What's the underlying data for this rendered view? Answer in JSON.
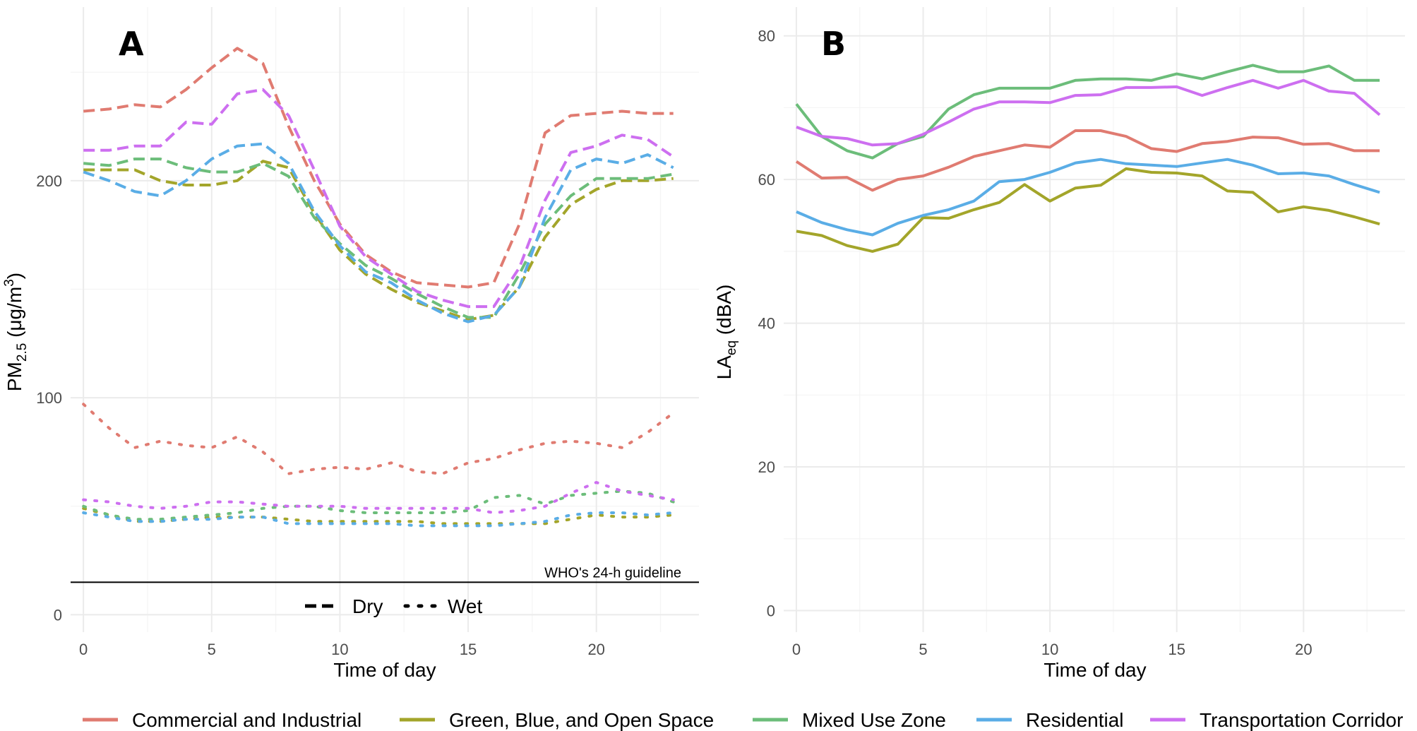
{
  "chart_data": [
    {
      "panel": "A",
      "type": "line",
      "xlabel": "Time of day",
      "ylabel": "PM2.5 (μg/m3)",
      "ylabel_main": "PM",
      "ylabel_sub": "2.5",
      "ylabel_rest": " (μg/m",
      "ylabel_sup": "3",
      "ylabel_close": ")",
      "xlim": [
        -0.5,
        24.0
      ],
      "ylim": [
        -8,
        280
      ],
      "xticks": [
        0,
        5,
        10,
        15,
        20
      ],
      "xtick_labels": [
        "0",
        "5",
        "10",
        "15",
        "20"
      ],
      "yticks": [
        0,
        100,
        200
      ],
      "ytick_labels": [
        "0",
        "100",
        "200"
      ],
      "annotation": {
        "text": "WHO's 24-h guideline",
        "y": 15
      },
      "linetype_legend": [
        {
          "label": "Dry",
          "dash": "dashed"
        },
        {
          "label": "Wet",
          "dash": "dotted"
        }
      ],
      "x": [
        0,
        1,
        2,
        3,
        4,
        5,
        6,
        7,
        8,
        9,
        10,
        11,
        12,
        13,
        14,
        15,
        16,
        17,
        18,
        19,
        20,
        21,
        22,
        23
      ],
      "series": [
        {
          "name": "Commercial and Industrial",
          "condition": "Dry",
          "values": [
            232,
            233,
            235,
            234,
            242,
            252,
            261,
            254,
            225,
            200,
            180,
            166,
            158,
            153,
            152,
            151,
            153,
            180,
            222,
            230,
            231,
            232,
            231,
            231
          ]
        },
        {
          "name": "Green, Blue, and Open Space",
          "condition": "Dry",
          "values": [
            205,
            205,
            205,
            200,
            198,
            198,
            200,
            209,
            206,
            185,
            168,
            157,
            150,
            144,
            140,
            136,
            138,
            151,
            174,
            189,
            196,
            200,
            200,
            201
          ]
        },
        {
          "name": "Mixed Use Zone",
          "condition": "Dry",
          "values": [
            208,
            207,
            210,
            210,
            206,
            204,
            204,
            208,
            202,
            183,
            171,
            161,
            155,
            148,
            142,
            137,
            137,
            157,
            180,
            193,
            201,
            201,
            201,
            203
          ]
        },
        {
          "name": "Residential",
          "condition": "Dry",
          "values": [
            204,
            200,
            195,
            193,
            200,
            210,
            216,
            217,
            208,
            186,
            170,
            158,
            153,
            145,
            139,
            135,
            138,
            151,
            183,
            205,
            210,
            208,
            212,
            206
          ]
        },
        {
          "name": "Transportation Corridor",
          "condition": "Dry",
          "values": [
            214,
            214,
            216,
            216,
            227,
            226,
            240,
            242,
            230,
            205,
            179,
            165,
            157,
            149,
            145,
            142,
            142,
            160,
            191,
            213,
            216,
            221,
            219,
            211
          ]
        },
        {
          "name": "Commercial and Industrial",
          "condition": "Wet",
          "values": [
            97,
            86,
            77,
            80,
            78,
            77,
            82,
            75,
            65,
            67,
            68,
            67,
            70,
            66,
            65,
            70,
            72,
            76,
            79,
            80,
            79,
            77,
            84,
            93
          ]
        },
        {
          "name": "Green, Blue, and Open Space",
          "condition": "Wet",
          "values": [
            49,
            46,
            43,
            43,
            44,
            45,
            45,
            45,
            44,
            43,
            43,
            43,
            43,
            43,
            42,
            42,
            42,
            42,
            42,
            44,
            46,
            45,
            45,
            46
          ]
        },
        {
          "name": "Mixed Use Zone",
          "condition": "Wet",
          "values": [
            50,
            46,
            44,
            44,
            45,
            46,
            47,
            49,
            50,
            50,
            48,
            47,
            47,
            47,
            47,
            48,
            54,
            55,
            51,
            55,
            56,
            57,
            56,
            52
          ]
        },
        {
          "name": "Residential",
          "condition": "Wet",
          "values": [
            47,
            45,
            43,
            43,
            44,
            44,
            45,
            45,
            42,
            42,
            42,
            42,
            42,
            41,
            41,
            41,
            41,
            42,
            43,
            46,
            47,
            47,
            46,
            47
          ]
        },
        {
          "name": "Transportation Corridor",
          "condition": "Wet",
          "values": [
            53,
            52,
            50,
            49,
            50,
            52,
            52,
            51,
            50,
            50,
            50,
            49,
            49,
            49,
            49,
            49,
            47,
            48,
            50,
            56,
            61,
            57,
            55,
            53
          ]
        }
      ]
    },
    {
      "panel": "B",
      "type": "line",
      "xlabel": "Time of day",
      "ylabel": "LAeq (dBA)",
      "ylabel_main": "LA",
      "ylabel_sub": "eq",
      "ylabel_rest": " (dBA)",
      "xlim": [
        -0.5,
        24.0
      ],
      "ylim": [
        -3,
        84
      ],
      "xticks": [
        0,
        5,
        10,
        15,
        20
      ],
      "xtick_labels": [
        "0",
        "5",
        "10",
        "15",
        "20"
      ],
      "yticks": [
        0,
        20,
        40,
        60,
        80
      ],
      "ytick_labels": [
        "0",
        "20",
        "40",
        "60",
        "80"
      ],
      "x": [
        0,
        1,
        2,
        3,
        4,
        5,
        6,
        7,
        8,
        9,
        10,
        11,
        12,
        13,
        14,
        15,
        16,
        17,
        18,
        19,
        20,
        21,
        22,
        23
      ],
      "series": [
        {
          "name": "Commercial and Industrial",
          "values": [
            62.5,
            60.2,
            60.3,
            58.5,
            60.0,
            60.5,
            61.7,
            63.2,
            64.0,
            64.8,
            64.5,
            66.8,
            66.8,
            66.0,
            64.3,
            63.9,
            65.0,
            65.3,
            65.9,
            65.8,
            64.9,
            65.0,
            64.0,
            64.0
          ]
        },
        {
          "name": "Green, Blue, and Open Space",
          "values": [
            52.8,
            52.2,
            50.8,
            50.0,
            51.0,
            54.7,
            54.6,
            55.8,
            56.8,
            59.3,
            57.0,
            58.8,
            59.2,
            61.5,
            61.0,
            60.9,
            60.5,
            58.4,
            58.2,
            55.5,
            56.2,
            55.7,
            54.8,
            53.8
          ]
        },
        {
          "name": "Mixed Use Zone",
          "values": [
            70.5,
            66.0,
            64.0,
            63.0,
            65.0,
            66.0,
            69.8,
            71.8,
            72.7,
            72.7,
            72.7,
            73.8,
            74.0,
            74.0,
            73.8,
            74.7,
            74.0,
            75.0,
            75.9,
            75.0,
            75.0,
            75.8,
            73.8,
            73.8
          ]
        },
        {
          "name": "Residential",
          "values": [
            55.5,
            54.0,
            53.0,
            52.3,
            53.9,
            55.0,
            55.8,
            57.0,
            59.7,
            60.0,
            61.0,
            62.3,
            62.8,
            62.2,
            62.0,
            61.8,
            62.3,
            62.8,
            62.0,
            60.8,
            60.9,
            60.5,
            59.3,
            58.2
          ]
        },
        {
          "name": "Transportation Corridor",
          "values": [
            67.3,
            66.0,
            65.7,
            64.8,
            65.0,
            66.3,
            68.0,
            69.8,
            70.8,
            70.8,
            70.7,
            71.7,
            71.8,
            72.8,
            72.8,
            72.9,
            71.7,
            72.8,
            73.8,
            72.7,
            73.8,
            72.3,
            72.0,
            69.0
          ]
        }
      ]
    }
  ],
  "legend": [
    {
      "label": "Commercial and Industrial",
      "color": "#e07b71"
    },
    {
      "label": "Green, Blue, and Open Space",
      "color": "#a3a52a"
    },
    {
      "label": "Mixed Use Zone",
      "color": "#6cbd7a"
    },
    {
      "label": "Residential",
      "color": "#5aade6"
    },
    {
      "label": "Transportation Corridor",
      "color": "#cd6ff0"
    }
  ]
}
